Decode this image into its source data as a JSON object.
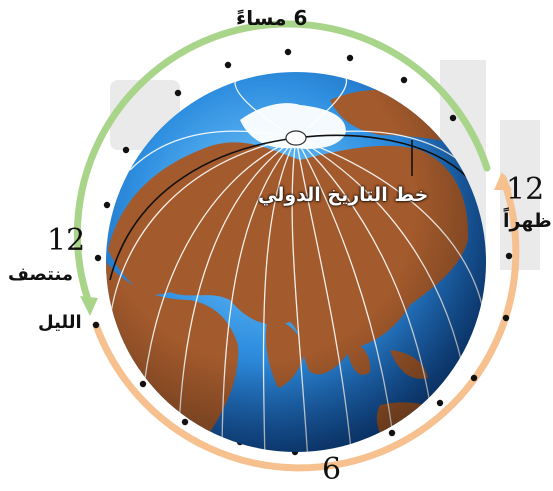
{
  "labels": {
    "top_evening": "6 مساءً",
    "right_number": "12",
    "right_text": "ظهراً",
    "left_number": "12",
    "left_text_line1": "منتصف",
    "left_text_line2": "الليل",
    "bottom_number": "6",
    "center_caption": "خط التاريخ الدولي"
  },
  "colors": {
    "night_arc": "#a9d58b",
    "day_arc": "#f6c08f",
    "ocean": "#2f86d6",
    "land": "#a35a2c",
    "ice": "#ffffff"
  }
}
